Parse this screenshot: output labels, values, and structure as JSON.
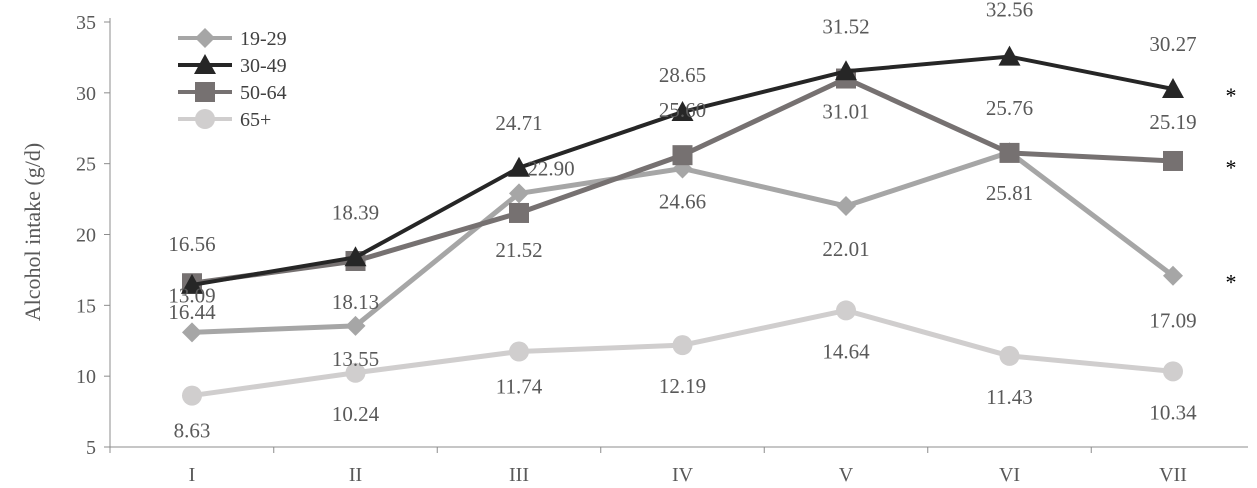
{
  "chart_data": {
    "type": "line",
    "title": "",
    "xlabel": "",
    "ylabel": "Alcohol intake (g/d)",
    "ylim": [
      5,
      35
    ],
    "yticks": [
      5,
      10,
      15,
      20,
      25,
      30,
      35
    ],
    "grid": false,
    "legend_position": "top-left",
    "categories": [
      "I",
      "II",
      "III",
      "IV",
      "V",
      "VI",
      "VII"
    ],
    "series": [
      {
        "name": "19-29",
        "marker": "diamond",
        "color": "#A6A6A6",
        "values": [
          13.09,
          13.55,
          22.9,
          24.66,
          22.01,
          25.81,
          17.09
        ],
        "labels": [
          "13.09",
          "13.55",
          "22.90",
          "24.66",
          "22.01",
          "25.81",
          "17.09"
        ],
        "significance": "*"
      },
      {
        "name": "30-49",
        "marker": "triangle",
        "color": "#262626",
        "values": [
          16.44,
          18.39,
          24.71,
          28.65,
          31.52,
          32.56,
          30.27
        ],
        "labels": [
          "16.44",
          "18.39",
          "24.71",
          "28.65",
          "31.52",
          "32.56",
          "30.27"
        ],
        "significance": "*"
      },
      {
        "name": "50-64",
        "marker": "square",
        "color": "#767171",
        "values": [
          16.56,
          18.13,
          21.52,
          25.6,
          31.01,
          25.76,
          25.19
        ],
        "labels": [
          "16.56",
          "18.13",
          "21.52",
          "25.60",
          "31.01",
          "25.76",
          "25.19"
        ],
        "significance": "*"
      },
      {
        "name": "65+",
        "marker": "circle",
        "color": "#D0CECE",
        "values": [
          8.63,
          10.24,
          11.74,
          12.19,
          14.64,
          11.43,
          10.34
        ],
        "labels": [
          "8.63",
          "10.24",
          "11.74",
          "12.19",
          "14.64",
          "11.43",
          "10.34"
        ],
        "significance": ""
      }
    ]
  }
}
